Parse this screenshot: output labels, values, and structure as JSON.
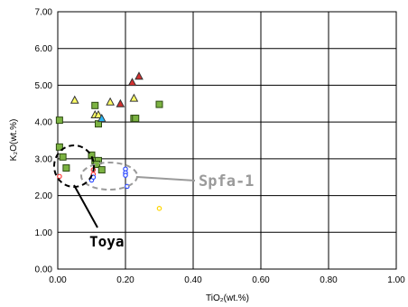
{
  "chart_data": {
    "type": "scatter",
    "title": "",
    "xlabel": "TiO₂(wt.%)",
    "ylabel": "K₂O(wt.%)",
    "xlim": [
      0,
      1.0
    ],
    "ylim": [
      0,
      7.0
    ],
    "x_ticks": [
      "0.00",
      "0.20",
      "0.40",
      "0.60",
      "0.80",
      "1.00"
    ],
    "y_ticks": [
      "0.00",
      "1.00",
      "2.00",
      "3.00",
      "4.00",
      "5.00",
      "6.00",
      "7.00"
    ],
    "grid": true,
    "legend": "none",
    "series": [
      {
        "marker": "square",
        "color": "#7cb342",
        "points": [
          [
            0.005,
            4.05
          ],
          [
            0.005,
            3.32
          ],
          [
            0.015,
            3.05
          ],
          [
            0.025,
            2.75
          ],
          [
            0.11,
            4.45
          ],
          [
            0.12,
            3.95
          ],
          [
            0.1,
            3.1
          ],
          [
            0.11,
            2.95
          ],
          [
            0.12,
            2.95
          ],
          [
            0.115,
            2.85
          ],
          [
            0.13,
            2.7
          ],
          [
            0.225,
            4.1
          ],
          [
            0.23,
            4.1
          ],
          [
            0.3,
            4.48
          ]
        ]
      },
      {
        "marker": "triangle",
        "color": "#ffff66",
        "points": [
          [
            0.05,
            4.6
          ],
          [
            0.11,
            4.2
          ],
          [
            0.12,
            4.2
          ],
          [
            0.155,
            4.55
          ],
          [
            0.225,
            4.65
          ]
        ]
      },
      {
        "marker": "triangle",
        "color": "#d32f2f",
        "points": [
          [
            0.185,
            4.5
          ],
          [
            0.22,
            5.08
          ],
          [
            0.24,
            5.25
          ]
        ]
      },
      {
        "marker": "triangle",
        "color": "#29b6f6",
        "points": [
          [
            0.13,
            4.1
          ]
        ]
      },
      {
        "marker": "circle",
        "color": "#ff3b3b",
        "points": [
          [
            0.005,
            2.52
          ],
          [
            0.105,
            2.7
          ],
          [
            0.105,
            2.58
          ]
        ]
      },
      {
        "marker": "circle",
        "color": "#2e4bff",
        "points": [
          [
            0.1,
            2.42
          ],
          [
            0.105,
            2.5
          ],
          [
            0.2,
            2.72
          ],
          [
            0.2,
            2.62
          ],
          [
            0.2,
            2.55
          ],
          [
            0.205,
            2.25
          ]
        ]
      },
      {
        "marker": "circle",
        "color": "#ffd600",
        "points": [
          [
            0.3,
            1.65
          ]
        ]
      }
    ],
    "annotations": [
      {
        "text": "Spfa-1",
        "color": "#9a9a9a"
      },
      {
        "text": "Toya",
        "color": "#000000"
      }
    ]
  }
}
